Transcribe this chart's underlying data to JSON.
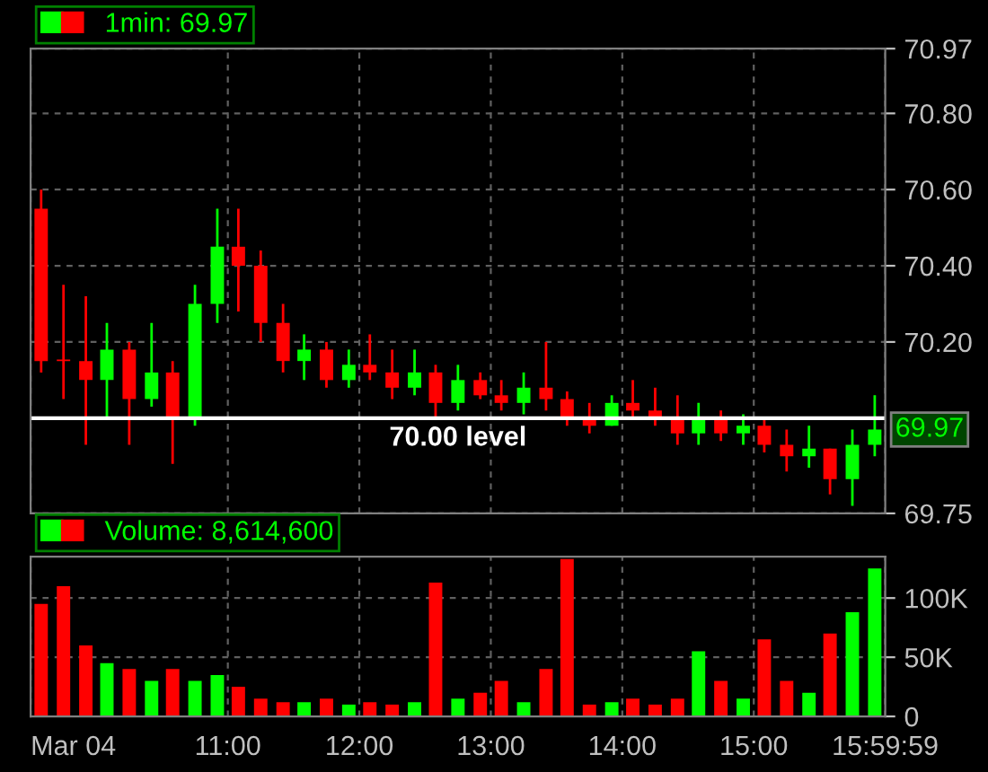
{
  "chart_data": [
    {
      "type": "candlestick",
      "legend": "top left",
      "grid": true,
      "tick_labels": "y",
      "xlim": [
        9.5,
        16.0
      ],
      "ylim": [
        69.75,
        70.97
      ],
      "xticks": [
        {
          "value": 9.5,
          "label": null
        },
        {
          "value": 11,
          "label": null
        },
        {
          "value": 12,
          "label": null
        },
        {
          "value": 13,
          "label": null
        },
        {
          "value": 14,
          "label": null
        },
        {
          "value": 15,
          "label": null
        },
        {
          "value": 16,
          "label": null
        }
      ],
      "yticks": [
        69.75,
        {
          "value": 70.2,
          "label": "70.20"
        },
        {
          "value": 70.4,
          "label": "70.40"
        },
        {
          "value": 70.6,
          "label": "70.60"
        },
        {
          "value": 70.8,
          "label": "70.80"
        },
        70.97
      ],
      "ref_lines": [
        {
          "axis": "y",
          "value": 70.0,
          "label": "70.00 level",
          "color": "#ffffff"
        }
      ],
      "annotations": [
        {
          "text": "69.97",
          "x": 16.0,
          "y": 69.97
        }
      ],
      "series": [
        {
          "name": "1min: 69.97",
          "x": [
            9.58,
            9.75,
            9.92,
            10.08,
            10.25,
            10.42,
            10.58,
            10.75,
            10.92,
            11.08,
            11.25,
            11.42,
            11.58,
            11.75,
            11.92,
            12.08,
            12.25,
            12.42,
            12.58,
            12.75,
            12.92,
            13.08,
            13.25,
            13.42,
            13.58,
            13.75,
            13.92,
            14.08,
            14.25,
            14.42,
            14.58,
            14.75,
            14.92,
            15.08,
            15.25,
            15.42,
            15.58,
            15.75,
            15.92
          ],
          "ohlc": [
            [
              70.55,
              70.6,
              70.12,
              70.15
            ],
            [
              70.15,
              70.35,
              70.05,
              70.15
            ],
            [
              70.15,
              70.32,
              69.93,
              70.1
            ],
            [
              70.1,
              70.25,
              70.0,
              70.18
            ],
            [
              70.18,
              70.2,
              69.93,
              70.05
            ],
            [
              70.05,
              70.25,
              70.03,
              70.12
            ],
            [
              70.12,
              70.15,
              69.88,
              70.0
            ],
            [
              70.0,
              70.35,
              69.98,
              70.3
            ],
            [
              70.3,
              70.55,
              70.25,
              70.45
            ],
            [
              70.45,
              70.55,
              70.28,
              70.4
            ],
            [
              70.4,
              70.44,
              70.2,
              70.25
            ],
            [
              70.25,
              70.3,
              70.12,
              70.15
            ],
            [
              70.15,
              70.22,
              70.1,
              70.18
            ],
            [
              70.18,
              70.2,
              70.08,
              70.1
            ],
            [
              70.1,
              70.18,
              70.08,
              70.14
            ],
            [
              70.14,
              70.22,
              70.1,
              70.12
            ],
            [
              70.12,
              70.18,
              70.05,
              70.08
            ],
            [
              70.08,
              70.18,
              70.06,
              70.12
            ],
            [
              70.12,
              70.14,
              70.0,
              70.04
            ],
            [
              70.04,
              70.14,
              70.02,
              70.1
            ],
            [
              70.1,
              70.12,
              70.05,
              70.06
            ],
            [
              70.06,
              70.1,
              70.02,
              70.04
            ],
            [
              70.04,
              70.12,
              70.01,
              70.08
            ],
            [
              70.08,
              70.2,
              70.02,
              70.05
            ],
            [
              70.05,
              70.07,
              69.98,
              70.0
            ],
            [
              70.0,
              70.04,
              69.96,
              69.98
            ],
            [
              69.98,
              70.06,
              69.98,
              70.04
            ],
            [
              70.04,
              70.1,
              70.0,
              70.02
            ],
            [
              70.02,
              70.08,
              69.98,
              70.0
            ],
            [
              70.0,
              70.06,
              69.93,
              69.96
            ],
            [
              69.96,
              70.04,
              69.93,
              70.0
            ],
            [
              70.0,
              70.02,
              69.94,
              69.96
            ],
            [
              69.96,
              70.01,
              69.93,
              69.98
            ],
            [
              69.98,
              70.0,
              69.91,
              69.93
            ],
            [
              69.93,
              69.97,
              69.86,
              69.9
            ],
            [
              69.9,
              69.98,
              69.87,
              69.92
            ],
            [
              69.92,
              69.92,
              69.8,
              69.84
            ],
            [
              69.84,
              69.97,
              69.77,
              69.93
            ],
            [
              69.93,
              70.06,
              69.9,
              69.97
            ]
          ],
          "colors": [
            "#ff0000",
            "#ff0000",
            "#ff0000",
            "#00ff00",
            "#ff0000",
            "#00ff00",
            "#ff0000",
            "#00ff00",
            "#00ff00",
            "#ff0000",
            "#ff0000",
            "#ff0000",
            "#00ff00",
            "#ff0000",
            "#00ff00",
            "#ff0000",
            "#ff0000",
            "#00ff00",
            "#ff0000",
            "#00ff00",
            "#ff0000",
            "#ff0000",
            "#00ff00",
            "#ff0000",
            "#ff0000",
            "#ff0000",
            "#00ff00",
            "#ff0000",
            "#ff0000",
            "#ff0000",
            "#00ff00",
            "#ff0000",
            "#00ff00",
            "#ff0000",
            "#ff0000",
            "#00ff00",
            "#ff0000",
            "#00ff00",
            "#00ff00"
          ]
        }
      ]
    },
    {
      "type": "bar",
      "legend": "top left",
      "grid": true,
      "xlim": [
        9.5,
        16.0
      ],
      "ylim": [
        0,
        135000
      ],
      "xticks": [
        {
          "value": 9.5,
          "label": "Mar 04"
        },
        {
          "value": 11,
          "label": "11:00"
        },
        {
          "value": 12,
          "label": "12:00"
        },
        {
          "value": 13,
          "label": "13:00"
        },
        {
          "value": 14,
          "label": "14:00"
        },
        {
          "value": 15,
          "label": "15:00"
        },
        {
          "value": 15.9997,
          "label": "15:59:59"
        }
      ],
      "yticks": [
        0,
        {
          "value": 50000,
          "label": "50K"
        },
        {
          "value": 100000,
          "label": "100K"
        }
      ],
      "series": [
        {
          "name": "Volume: 8,614,600",
          "x": [
            9.58,
            9.75,
            9.92,
            10.08,
            10.25,
            10.42,
            10.58,
            10.75,
            10.92,
            11.08,
            11.25,
            11.42,
            11.58,
            11.75,
            11.92,
            12.08,
            12.25,
            12.42,
            12.58,
            12.75,
            12.92,
            13.08,
            13.25,
            13.42,
            13.58,
            13.75,
            13.92,
            14.08,
            14.25,
            14.42,
            14.58,
            14.75,
            14.92,
            15.08,
            15.25,
            15.42,
            15.58,
            15.75,
            15.92
          ],
          "values": [
            95000,
            110000,
            60000,
            45000,
            40000,
            30000,
            40000,
            30000,
            35000,
            25000,
            15000,
            12000,
            12000,
            15000,
            10000,
            12000,
            10000,
            12000,
            113000,
            15000,
            20000,
            30000,
            12000,
            40000,
            133000,
            10000,
            12000,
            15000,
            10000,
            15000,
            55000,
            30000,
            15000,
            65000,
            30000,
            20000,
            70000,
            88000,
            125000
          ],
          "colors": [
            "#ff0000",
            "#ff0000",
            "#ff0000",
            "#00ff00",
            "#ff0000",
            "#00ff00",
            "#ff0000",
            "#00ff00",
            "#00ff00",
            "#ff0000",
            "#ff0000",
            "#ff0000",
            "#00ff00",
            "#ff0000",
            "#00ff00",
            "#ff0000",
            "#ff0000",
            "#00ff00",
            "#ff0000",
            "#00ff00",
            "#ff0000",
            "#ff0000",
            "#00ff00",
            "#ff0000",
            "#ff0000",
            "#ff0000",
            "#00ff00",
            "#ff0000",
            "#ff0000",
            "#ff0000",
            "#00ff00",
            "#ff0000",
            "#00ff00",
            "#ff0000",
            "#ff0000",
            "#00ff00",
            "#ff0000",
            "#00ff00",
            "#00ff00"
          ]
        }
      ]
    }
  ]
}
